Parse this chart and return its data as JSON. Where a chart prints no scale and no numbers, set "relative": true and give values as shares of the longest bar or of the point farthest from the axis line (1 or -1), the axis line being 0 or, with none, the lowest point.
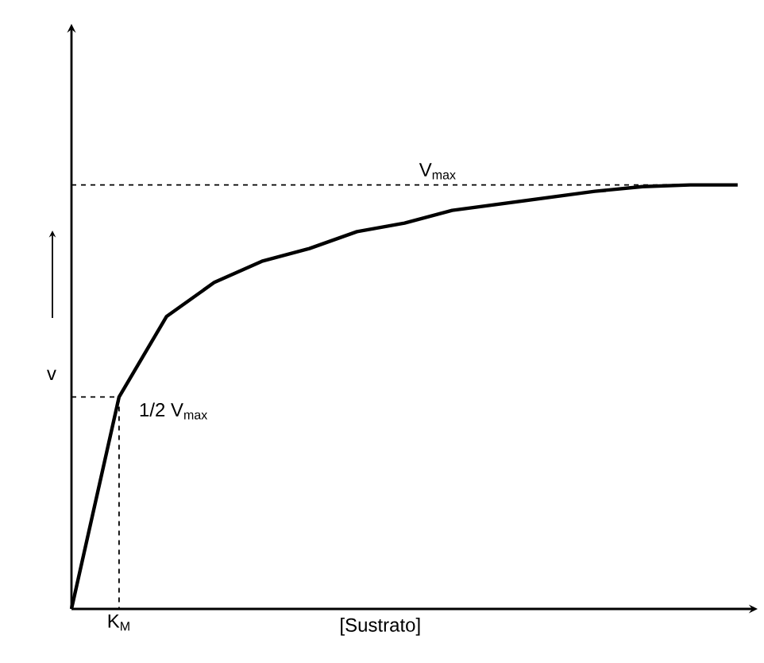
{
  "chart_data": {
    "type": "line",
    "relative": true,
    "xlabel": "[Sustrato]",
    "ylabel": "v",
    "categories": [
      null,
      null,
      null,
      null,
      null,
      null,
      null,
      null,
      null,
      null,
      null,
      null,
      null,
      null,
      null
    ],
    "series": [
      {
        "color": "#000000",
        "line_style": "solid",
        "values": [
          0,
          0.5,
          0.69,
          0.77,
          0.82,
          0.85,
          0.89,
          0.91,
          0.94,
          0.955,
          0.97,
          0.985,
          0.996,
          1.0,
          1.0
        ]
      }
    ],
    "ref_lines": [
      {
        "axis": "y",
        "value": 1,
        "label": "V$_{max}$",
        "line_style": "dashed"
      },
      {
        "axis": "y",
        "value": 0.5,
        "label": "1/2  V$_{max}$",
        "line_style": "dashed"
      }
    ],
    "annotations": [
      "K$_{M}$"
    ]
  }
}
